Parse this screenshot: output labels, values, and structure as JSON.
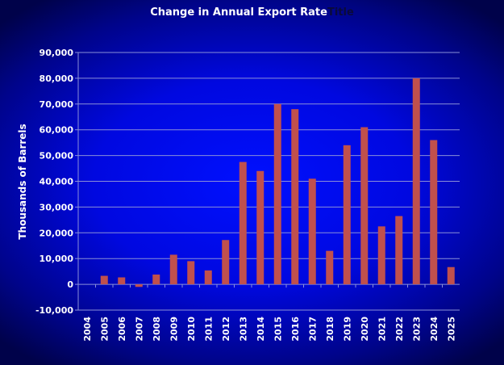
{
  "chart_data": {
    "type": "bar",
    "title": "Change in Annual Export Rate",
    "title_ghost": "Title",
    "xlabel": "",
    "ylabel": "Thousands of Barrels",
    "ylim": [
      -10000,
      90000
    ],
    "yticks": [
      -10000,
      0,
      10000,
      20000,
      30000,
      40000,
      50000,
      60000,
      70000,
      80000,
      90000
    ],
    "ytick_labels": [
      "-10,000",
      "0",
      "10,000",
      "20,000",
      "30,000",
      "40,000",
      "50,000",
      "60,000",
      "70,000",
      "80,000",
      "90,000"
    ],
    "grid": true,
    "categories": [
      "2004",
      "2005",
      "2006",
      "2007",
      "2008",
      "2009",
      "2010",
      "2011",
      "2012",
      "2013",
      "2014",
      "2015",
      "2016",
      "2017",
      "2018",
      "2019",
      "2020",
      "2021",
      "2022",
      "2023",
      "2024",
      "2025"
    ],
    "values": [
      0,
      3300,
      2700,
      -1000,
      3800,
      11500,
      9000,
      5400,
      17200,
      47500,
      44000,
      70000,
      68000,
      41000,
      13000,
      54000,
      61000,
      22500,
      26500,
      80000,
      56000,
      6700
    ],
    "colors": {
      "bar": "#c0504d",
      "grid": "#8a8fd8",
      "text": "#ffffff"
    }
  }
}
